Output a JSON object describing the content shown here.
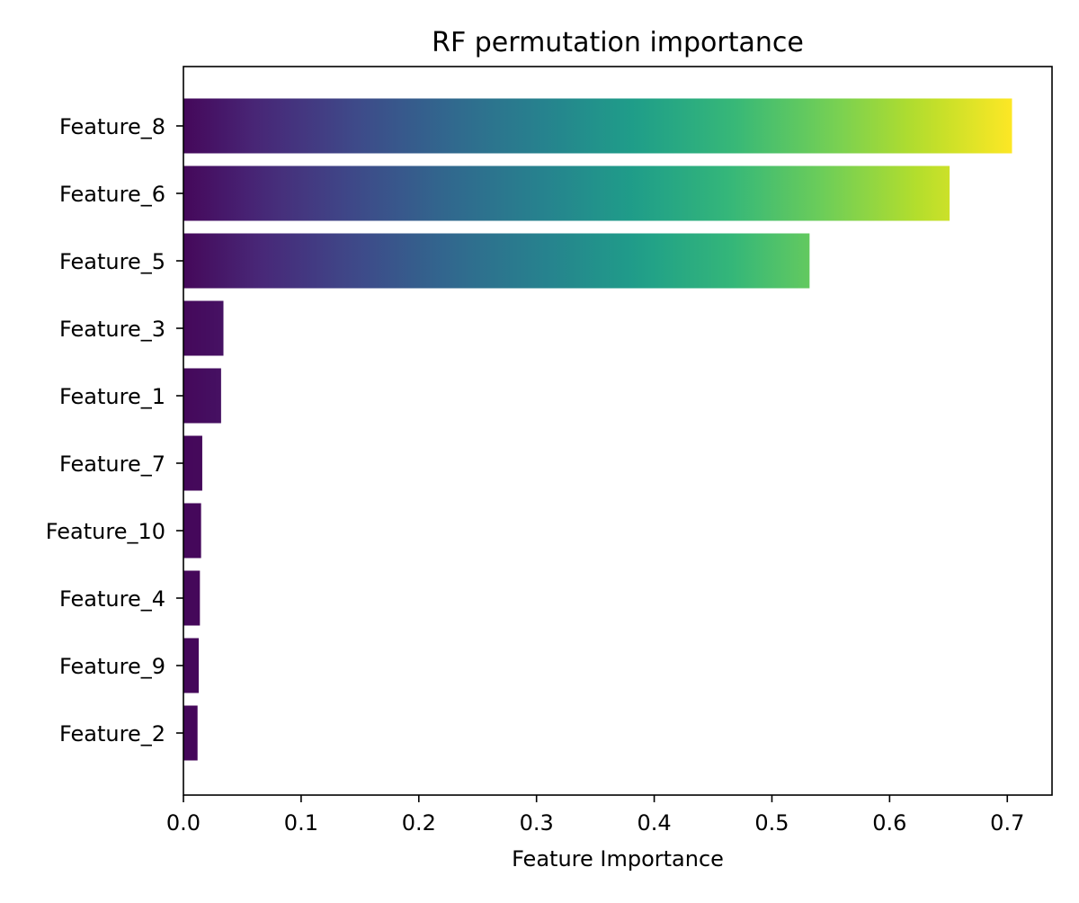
{
  "chart_data": {
    "type": "bar",
    "orientation": "horizontal",
    "title": "RF permutation importance",
    "xlabel": "Feature Importance",
    "ylabel": "",
    "categories": [
      "Feature_8",
      "Feature_6",
      "Feature_5",
      "Feature_3",
      "Feature_1",
      "Feature_7",
      "Feature_10",
      "Feature_4",
      "Feature_9",
      "Feature_2"
    ],
    "values": [
      0.704,
      0.651,
      0.532,
      0.034,
      0.032,
      0.016,
      0.015,
      0.014,
      0.013,
      0.012
    ],
    "xlim": [
      0,
      0.738
    ],
    "xticks": [
      "0.0",
      "0.1",
      "0.2",
      "0.3",
      "0.4",
      "0.5",
      "0.6",
      "0.7"
    ],
    "grid": false,
    "legend": "none",
    "colormap": "viridis",
    "colormap_colors": [
      "#440154",
      "#482878",
      "#3e4989",
      "#31688e",
      "#26828e",
      "#1f9e89",
      "#35b779",
      "#6ece58",
      "#b5de2b",
      "#fde725"
    ]
  }
}
